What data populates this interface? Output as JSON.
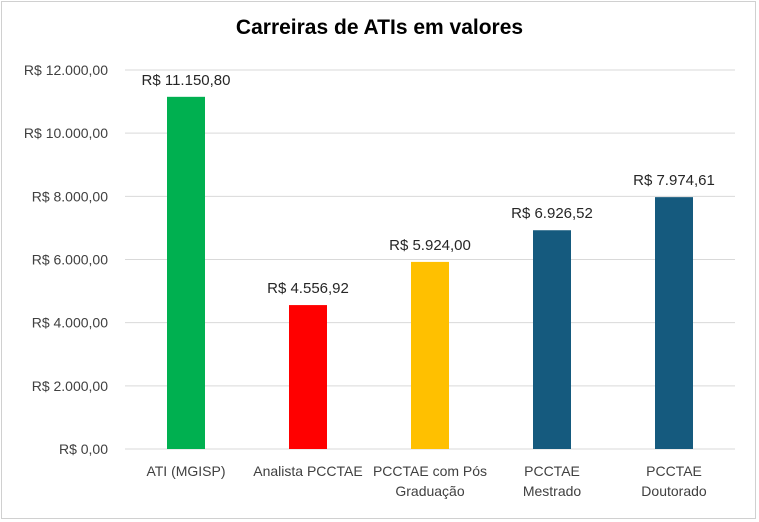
{
  "chart_data": {
    "type": "bar",
    "title": "Carreiras de ATIs em valores",
    "xlabel": "",
    "ylabel": "",
    "ylim": [
      0,
      12000
    ],
    "yticks": [
      0,
      2000,
      4000,
      6000,
      8000,
      10000,
      12000
    ],
    "ytick_labels": [
      "R$ 0,00",
      "R$ 2.000,00",
      "R$ 4.000,00",
      "R$ 6.000,00",
      "R$ 8.000,00",
      "R$ 10.000,00",
      "R$ 12.000,00"
    ],
    "grid": true,
    "legend": "none",
    "categories": [
      [
        "ATI (MGISP)"
      ],
      [
        "Analista PCCTAE"
      ],
      [
        "PCCTAE com Pós",
        "Graduação"
      ],
      [
        "PCCTAE",
        "Mestrado"
      ],
      [
        "PCCTAE",
        "Doutorado"
      ]
    ],
    "values": [
      11150.8,
      4556.92,
      5924.0,
      6926.52,
      7974.61
    ],
    "data_labels": [
      "R$ 11.150,80",
      "R$ 4.556,92",
      "R$ 5.924,00",
      "R$ 6.926,52",
      "R$ 7.974,61"
    ],
    "colors": [
      "#00b050",
      "#ff0000",
      "#ffc000",
      "#155a7e",
      "#155a7e"
    ],
    "gridline_color": "#d9d9d9"
  }
}
